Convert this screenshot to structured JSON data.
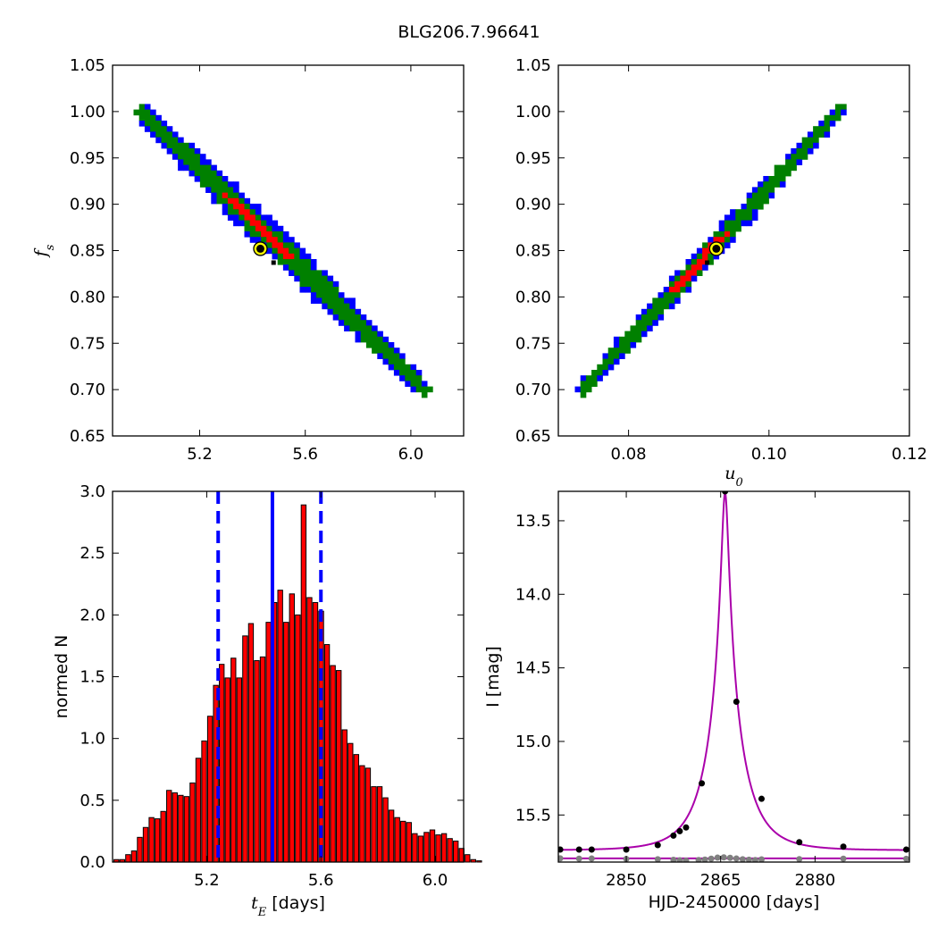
{
  "figure": {
    "title": "BLG206.7.96641"
  },
  "chart_data": [
    {
      "id": "fs_vs_tE",
      "type": "heatmap",
      "xlabel": "",
      "ylabel": "f_s",
      "xlim": [
        4.87,
        6.2
      ],
      "ylim": [
        0.65,
        1.05
      ],
      "xticks": [
        5.2,
        5.6,
        6.0
      ],
      "xtick_labels": [
        "5.2",
        "5.6",
        "6.0"
      ],
      "yticks": [
        0.65,
        0.7,
        0.75,
        0.8,
        0.85,
        0.9,
        0.95,
        1.0,
        1.05
      ],
      "ytick_labels": [
        "0.65",
        "0.70",
        "0.75",
        "0.80",
        "0.85",
        "0.90",
        "0.95",
        "1.00",
        "1.05"
      ],
      "contour_levels": [
        {
          "name": "3sigma",
          "color": "#0000ff",
          "x": [
            5.96,
            6.09,
            5.58,
            5.7,
            5.2,
            5.38
          ],
          "y": [
            1.0,
            0.7,
            0.86,
            0.8,
            0.93,
            0.86
          ],
          "halfwidth": 0.04
        },
        {
          "name": "2sigma",
          "color": "#008000",
          "halfwidth": 0.026
        },
        {
          "name": "1sigma",
          "color": "#ff0000",
          "t_range": [
            0.25,
            0.57
          ],
          "halfwidth": 0.013
        }
      ],
      "ridge": {
        "x_start": 4.98,
        "x_end": 6.05,
        "y_start": 1.0,
        "y_end": 0.7
      },
      "best_fit": {
        "x": 5.43,
        "y": 0.852
      },
      "marker": {
        "x": 5.48,
        "y": 0.837
      }
    },
    {
      "id": "fs_vs_u0",
      "type": "heatmap",
      "xlabel": "u_0",
      "ylabel": "",
      "xlim": [
        0.07,
        0.12
      ],
      "ylim": [
        0.65,
        1.05
      ],
      "xticks": [
        0.08,
        0.1,
        0.12
      ],
      "xtick_labels": [
        "0.08",
        "0.10",
        "0.12"
      ],
      "yticks": [
        0.65,
        0.7,
        0.75,
        0.8,
        0.85,
        0.9,
        0.95,
        1.0,
        1.05
      ],
      "ytick_labels": [
        "0.65",
        "0.70",
        "0.75",
        "0.80",
        "0.85",
        "0.90",
        "0.95",
        "1.00",
        "1.05"
      ],
      "contour_levels": [
        {
          "name": "3sigma",
          "color": "#0000ff",
          "halfwidth": 0.028
        },
        {
          "name": "2sigma",
          "color": "#008000",
          "halfwidth": 0.02
        },
        {
          "name": "1sigma",
          "color": "#ff0000",
          "t_range": [
            0.3,
            0.62
          ],
          "halfwidth": 0.011
        }
      ],
      "ridge": {
        "x_start": 0.0735,
        "x_end": 0.1105,
        "y_start": 0.7,
        "y_end": 1.005
      },
      "best_fit": {
        "x": 0.0925,
        "y": 0.852
      },
      "marker": {
        "x": 0.0912,
        "y": 0.837
      }
    },
    {
      "id": "tE_histogram",
      "type": "bar",
      "xlabel": "t_E [days]",
      "ylabel": "normed N",
      "xlim": [
        4.87,
        6.1
      ],
      "ylim": [
        0.0,
        3.0
      ],
      "xticks": [
        5.2,
        5.6,
        6.0
      ],
      "xtick_labels": [
        "5.2",
        "5.6",
        "6.0"
      ],
      "yticks": [
        0.0,
        0.5,
        1.0,
        1.5,
        2.0,
        2.5,
        3.0
      ],
      "ytick_labels": [
        "0.0",
        "0.5",
        "1.0",
        "1.5",
        "2.0",
        "2.5",
        "3.0"
      ],
      "bin_start": 4.875,
      "bin_width": 0.0205,
      "values": [
        0.02,
        0.02,
        0.06,
        0.09,
        0.2,
        0.28,
        0.36,
        0.35,
        0.41,
        0.58,
        0.56,
        0.54,
        0.53,
        0.64,
        0.84,
        0.98,
        1.18,
        1.43,
        1.6,
        1.49,
        1.65,
        1.49,
        1.83,
        1.93,
        1.63,
        1.66,
        1.94,
        2.1,
        2.2,
        1.94,
        2.17,
        2.0,
        2.89,
        2.14,
        2.1,
        2.03,
        1.76,
        1.59,
        1.55,
        1.07,
        0.96,
        0.87,
        0.78,
        0.76,
        0.61,
        0.61,
        0.52,
        0.42,
        0.36,
        0.33,
        0.32,
        0.23,
        0.21,
        0.24,
        0.26,
        0.22,
        0.23,
        0.19,
        0.17,
        0.11,
        0.06,
        0.02,
        0.01
      ],
      "bar_color": "#ff0000",
      "edge_color": "#000000",
      "vlines": [
        {
          "x": 5.43,
          "style": "solid",
          "color": "#0000ff"
        },
        {
          "x": 5.24,
          "style": "dashed",
          "color": "#0000ff"
        },
        {
          "x": 5.6,
          "style": "dashed",
          "color": "#0000ff"
        }
      ]
    },
    {
      "id": "lightcurve",
      "type": "scatter",
      "xlabel": "HJD-2450000 [days]",
      "ylabel": "I [mag]",
      "xlim": [
        2839.2,
        2895.0
      ],
      "ylim": [
        15.82,
        13.3
      ],
      "xticks": [
        2850,
        2865,
        2880
      ],
      "xtick_labels": [
        "2850",
        "2865",
        "2880"
      ],
      "yticks": [
        13.5,
        14.0,
        14.5,
        15.0,
        15.5
      ],
      "ytick_labels": [
        "13.5",
        "14.0",
        "14.5",
        "15.0",
        "15.5"
      ],
      "model": {
        "t0": 2865.7,
        "u0": 0.0925,
        "tE": 5.43,
        "fs": 0.852,
        "baseline": 15.74,
        "color": "#aa00aa"
      },
      "baseline_line": {
        "mag": 15.795,
        "color": "#aa00aa"
      },
      "points": {
        "x": [
          2839.5,
          2842.5,
          2844.5,
          2850.0,
          2855.0,
          2857.5,
          2858.5,
          2859.5,
          2862.0,
          2865.7,
          2867.5,
          2871.5,
          2877.5,
          2884.5,
          2894.5
        ],
        "y": [
          15.735,
          15.735,
          15.735,
          15.735,
          15.705,
          15.64,
          15.61,
          15.585,
          15.285,
          13.3,
          14.73,
          15.39,
          15.685,
          15.715,
          15.735
        ],
        "color": "#000000"
      },
      "residual_points": {
        "x": [
          2839.5,
          2842.5,
          2844.5,
          2850.0,
          2855.0,
          2857.5,
          2858.5,
          2859.5,
          2861.5,
          2862.5,
          2863.5,
          2864.5,
          2865.5,
          2866.5,
          2867.5,
          2868.5,
          2869.5,
          2870.5,
          2871.5,
          2877.5,
          2884.5,
          2894.5
        ],
        "y": [
          15.795,
          15.797,
          15.796,
          15.799,
          15.801,
          15.805,
          15.808,
          15.81,
          15.806,
          15.803,
          15.797,
          15.79,
          15.788,
          15.791,
          15.796,
          15.801,
          15.804,
          15.806,
          15.802,
          15.8,
          15.797,
          15.798
        ],
        "color": "#808080"
      }
    }
  ]
}
